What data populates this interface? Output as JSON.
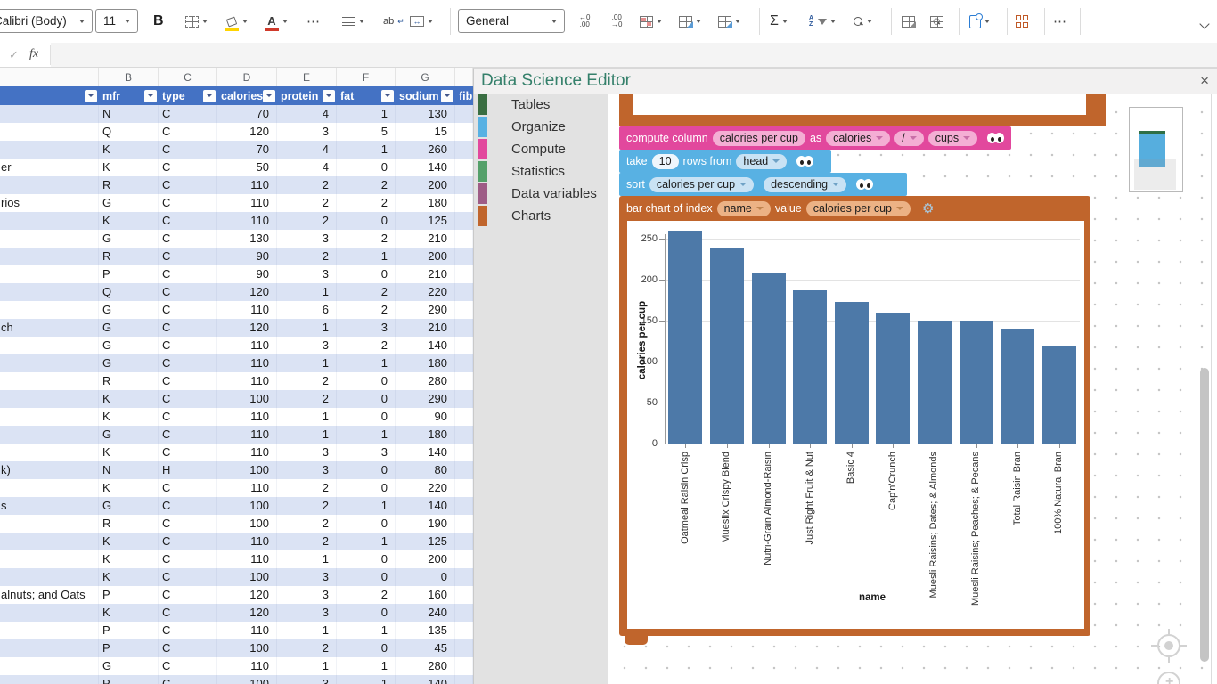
{
  "ribbon": {
    "font_name": "Calibri (Body)",
    "font_size": "11",
    "bold": "B",
    "overflow_dots": "⋯",
    "number_format": "General",
    "dec_decimal": {
      "top": "←0",
      "bottom": ".00"
    },
    "inc_decimal": {
      "top": ".00",
      "bottom": "→0"
    },
    "autosum": "Σ",
    "sort_az": {
      "top": "A",
      "bottom": "Z"
    },
    "wrap_text": "ab",
    "wrap_arrow": "↵",
    "merge_arrows": "↔"
  },
  "formula_bar": {
    "check": "✓",
    "fx": "fx",
    "input_value": ""
  },
  "sheet": {
    "column_letters": [
      "B",
      "C",
      "D",
      "E",
      "F",
      "G"
    ],
    "headers": [
      "mfr",
      "type",
      "calories",
      "protein",
      "fat",
      "sodium",
      "fib"
    ],
    "rows": [
      [
        "",
        "N",
        "C",
        70,
        4,
        1,
        130
      ],
      [
        "",
        "Q",
        "C",
        120,
        3,
        5,
        15
      ],
      [
        "",
        "K",
        "C",
        70,
        4,
        1,
        260
      ],
      [
        "er",
        "K",
        "C",
        50,
        4,
        0,
        140
      ],
      [
        "",
        "R",
        "C",
        110,
        2,
        2,
        200
      ],
      [
        "rios",
        "G",
        "C",
        110,
        2,
        2,
        180
      ],
      [
        "",
        "K",
        "C",
        110,
        2,
        0,
        125
      ],
      [
        "",
        "G",
        "C",
        130,
        3,
        2,
        210
      ],
      [
        "",
        "R",
        "C",
        90,
        2,
        1,
        200
      ],
      [
        "",
        "P",
        "C",
        90,
        3,
        0,
        210
      ],
      [
        "",
        "Q",
        "C",
        120,
        1,
        2,
        220
      ],
      [
        "",
        "G",
        "C",
        110,
        6,
        2,
        290
      ],
      [
        "ch",
        "G",
        "C",
        120,
        1,
        3,
        210
      ],
      [
        "",
        "G",
        "C",
        110,
        3,
        2,
        140
      ],
      [
        "",
        "G",
        "C",
        110,
        1,
        1,
        180
      ],
      [
        "",
        "R",
        "C",
        110,
        2,
        0,
        280
      ],
      [
        "",
        "K",
        "C",
        100,
        2,
        0,
        290
      ],
      [
        "",
        "K",
        "C",
        110,
        1,
        0,
        90
      ],
      [
        "",
        "G",
        "C",
        110,
        1,
        1,
        180
      ],
      [
        "",
        "K",
        "C",
        110,
        3,
        3,
        140
      ],
      [
        "k)",
        "N",
        "H",
        100,
        3,
        0,
        80
      ],
      [
        "",
        "K",
        "C",
        110,
        2,
        0,
        220
      ],
      [
        "s",
        "G",
        "C",
        100,
        2,
        1,
        140
      ],
      [
        "",
        "R",
        "C",
        100,
        2,
        0,
        190
      ],
      [
        "",
        "K",
        "C",
        110,
        2,
        1,
        125
      ],
      [
        "",
        "K",
        "C",
        110,
        1,
        0,
        200
      ],
      [
        "",
        "K",
        "C",
        100,
        3,
        0,
        0
      ],
      [
        "alnuts; and Oats",
        "P",
        "C",
        120,
        3,
        2,
        160
      ],
      [
        "",
        "K",
        "C",
        120,
        3,
        0,
        240
      ],
      [
        "",
        "P",
        "C",
        110,
        1,
        1,
        135
      ],
      [
        "",
        "P",
        "C",
        100,
        2,
        0,
        45
      ],
      [
        "",
        "G",
        "C",
        110,
        1,
        1,
        280
      ],
      [
        "",
        "P",
        "C",
        100,
        3,
        1,
        140
      ]
    ],
    "band_color": "#dbe3f4",
    "header_color": "#4472c4"
  },
  "editor": {
    "title": "Data Science Editor",
    "close_label": "×",
    "sidebar": [
      {
        "label": "Tables",
        "color": "#3a6e42"
      },
      {
        "label": "Organize",
        "color": "#58b1e3"
      },
      {
        "label": "Compute",
        "color": "#e2489d"
      },
      {
        "label": "Statistics",
        "color": "#55a06a"
      },
      {
        "label": "Data variables",
        "color": "#9e5c86"
      },
      {
        "label": "Charts",
        "color": "#c0652c"
      }
    ],
    "blocks": {
      "compute": {
        "kw1": "compute column",
        "field": "calories per cup",
        "kw2": "as",
        "dd_col": "calories",
        "dd_op": "/",
        "dd_col2": "cups"
      },
      "take": {
        "kw1": "take",
        "field": "10",
        "kw2": "rows from",
        "dd": "head"
      },
      "sort": {
        "kw1": "sort",
        "dd_col": "calories per cup",
        "dd_dir": "descending"
      },
      "barchart": {
        "kw1": "bar chart of index",
        "dd_index": "name",
        "kw2": "value",
        "dd_value": "calories per cup"
      }
    },
    "colors": {
      "pink": "#e2489d",
      "pink_field": "#f4aed4",
      "blue": "#58b1e3",
      "blue_field": "#c9e2f4",
      "blue_field_white": "#eef6fc",
      "orange": "#c0652c",
      "orange_field": "#ecb285"
    }
  },
  "chart_data": {
    "type": "bar",
    "categories": [
      "Oatmeal Raisin Crisp",
      "Mueslix Crispy Blend",
      "Nutri-Grain Almond-Raisin",
      "Just Right Fruit & Nut",
      "Basic 4",
      "Cap'n'Crunch",
      "Muesli Raisins; Dates; & Almonds",
      "Muesli Raisins; Peaches; & Pecans",
      "Total Raisin Bran",
      "100% Natural Bran"
    ],
    "values": [
      260,
      238.8,
      209,
      186.7,
      173.3,
      160,
      150,
      150,
      140,
      120
    ],
    "xlabel": "name",
    "ylabel": "calories per cup",
    "yticks": [
      0,
      50,
      100,
      150,
      200,
      250
    ],
    "ylim": [
      0,
      260
    ],
    "grid": true,
    "legend": false,
    "bar_color": "#4d79a8"
  }
}
